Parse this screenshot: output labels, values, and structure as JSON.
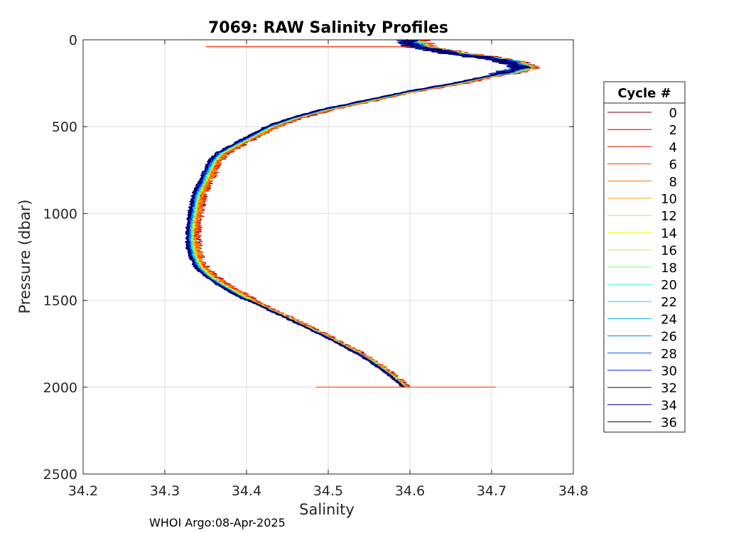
{
  "chart_data": {
    "type": "line",
    "title": "7069: RAW Salinity Profiles",
    "xlabel": "Salinity",
    "ylabel": "Pressure (dbar)",
    "xlim": [
      34.2,
      34.8
    ],
    "ylim": [
      0,
      2500
    ],
    "y_reversed": true,
    "xticks": [
      34.2,
      34.3,
      34.4,
      34.5,
      34.6,
      34.7,
      34.8
    ],
    "xtick_labels": [
      "34.2",
      "34.3",
      "34.4",
      "34.5",
      "34.6",
      "34.7",
      "34.8"
    ],
    "yticks": [
      0,
      500,
      1000,
      1500,
      2000,
      2500
    ],
    "ytick_labels": [
      "0",
      "500",
      "1000",
      "1500",
      "2000",
      "2500"
    ],
    "grid": true,
    "footer": "WHOI Argo:08-Apr-2025",
    "legend": {
      "title": "Cycle #",
      "placement": "outside-right",
      "entries": [
        {
          "label": "0",
          "color": "#800000"
        },
        {
          "label": "2",
          "color": "#cc0000"
        },
        {
          "label": "4",
          "color": "#e61e00"
        },
        {
          "label": "6",
          "color": "#ff4000"
        },
        {
          "label": "8",
          "color": "#ff7000"
        },
        {
          "label": "10",
          "color": "#ffa000"
        },
        {
          "label": "12",
          "color": "#ffd000"
        },
        {
          "label": "14",
          "color": "#f0ff10"
        },
        {
          "label": "16",
          "color": "#b0ff40"
        },
        {
          "label": "18",
          "color": "#70ff80"
        },
        {
          "label": "20",
          "color": "#30ffc0"
        },
        {
          "label": "22",
          "color": "#00e0ff"
        },
        {
          "label": "24",
          "color": "#00b0ff"
        },
        {
          "label": "26",
          "color": "#0080ff"
        },
        {
          "label": "28",
          "color": "#0050ff"
        },
        {
          "label": "30",
          "color": "#0020e0"
        },
        {
          "label": "32",
          "color": "#0000b0"
        },
        {
          "label": "34",
          "color": "#000090"
        },
        {
          "label": "36",
          "color": "#000070"
        }
      ]
    },
    "mean_profile": {
      "pressure": [
        0,
        40,
        80,
        120,
        160,
        200,
        250,
        300,
        350,
        400,
        450,
        500,
        550,
        600,
        650,
        700,
        750,
        800,
        850,
        900,
        950,
        1000,
        1050,
        1100,
        1150,
        1200,
        1250,
        1300,
        1350,
        1400,
        1450,
        1500,
        1550,
        1600,
        1650,
        1700,
        1750,
        1800,
        1850,
        1900,
        1950,
        2000
      ],
      "salinity": [
        34.6,
        34.61,
        34.66,
        34.72,
        34.74,
        34.71,
        34.66,
        34.6,
        34.55,
        34.5,
        34.46,
        34.43,
        34.41,
        34.39,
        34.37,
        34.36,
        34.355,
        34.35,
        34.345,
        34.34,
        34.338,
        34.336,
        34.334,
        34.333,
        34.333,
        34.334,
        34.337,
        34.342,
        34.352,
        34.367,
        34.385,
        34.405,
        34.427,
        34.45,
        34.472,
        34.495,
        34.515,
        34.535,
        34.553,
        34.568,
        34.582,
        34.594
      ]
    }
  }
}
